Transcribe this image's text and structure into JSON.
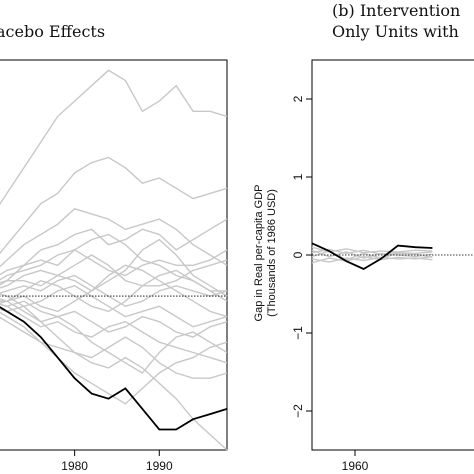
{
  "chart_data": [
    {
      "type": "line",
      "title": "acebo Effects",
      "xlabel": "",
      "ylabel": "",
      "xlim": [
        1970,
        1998
      ],
      "ylim": [
        -3,
        4.6
      ],
      "x_ticks": [
        1980,
        1990
      ],
      "y_ticks": [],
      "reference_line": 0,
      "grid": false,
      "treated_color": "#000000",
      "placebo_color": "#c8c8c8",
      "x": [
        1970,
        1972,
        1974,
        1976,
        1978,
        1980,
        1982,
        1984,
        1986,
        1988,
        1990,
        1992,
        1994,
        1996,
        1998
      ],
      "treated": [
        -0.1,
        -0.3,
        -0.5,
        -0.8,
        -1.2,
        -1.6,
        -1.9,
        -2.0,
        -1.8,
        -2.2,
        -2.6,
        -2.6,
        -2.4,
        -2.3,
        -2.2
      ],
      "placebos": [
        [
          1.5,
          2.0,
          2.5,
          3.0,
          3.5,
          3.8,
          4.1,
          4.4,
          4.2,
          3.6,
          3.8,
          4.1,
          3.6,
          3.6,
          3.5
        ],
        [
          0.6,
          1.0,
          1.4,
          1.8,
          2.0,
          2.4,
          2.6,
          2.7,
          2.5,
          2.2,
          2.3,
          2.1,
          1.9,
          2.0,
          2.1
        ],
        [
          0.4,
          0.7,
          1.0,
          1.2,
          1.4,
          1.7,
          1.6,
          1.5,
          1.3,
          1.4,
          1.5,
          1.3,
          1.0,
          0.8,
          0.6
        ],
        [
          0.3,
          0.5,
          0.6,
          0.9,
          1.0,
          1.2,
          1.3,
          1.0,
          1.1,
          1.3,
          1.2,
          0.9,
          1.1,
          1.3,
          1.5
        ],
        [
          0.2,
          0.4,
          0.5,
          0.6,
          0.8,
          0.9,
          1.1,
          1.2,
          1.0,
          0.7,
          0.6,
          0.4,
          0.3,
          0.1,
          0.1
        ],
        [
          0.1,
          0.2,
          0.4,
          0.5,
          0.4,
          0.6,
          0.8,
          0.6,
          0.3,
          0.2,
          0.2,
          0.3,
          0.5,
          0.6,
          0.7
        ],
        [
          0.1,
          0.3,
          0.3,
          0.2,
          0.4,
          0.3,
          0.1,
          0.4,
          0.6,
          0.5,
          0.3,
          0.1,
          -0.1,
          -0.3,
          -0.4
        ],
        [
          0.0,
          0.1,
          0.2,
          0.1,
          0.3,
          0.4,
          0.2,
          0.0,
          -0.2,
          -0.1,
          0.1,
          0.2,
          0.1,
          0.0,
          0.1
        ],
        [
          -0.1,
          -0.1,
          0.0,
          -0.2,
          -0.3,
          -0.1,
          0.1,
          0.3,
          0.5,
          0.9,
          1.1,
          0.8,
          0.4,
          0.2,
          0.0
        ],
        [
          -0.1,
          -0.2,
          -0.4,
          -0.6,
          -0.5,
          -0.7,
          -0.8,
          -0.6,
          -0.5,
          -0.7,
          -0.9,
          -1.0,
          -1.1,
          -1.2,
          -1.3
        ],
        [
          -0.2,
          -0.4,
          -0.6,
          -0.9,
          -1.0,
          -1.1,
          -1.3,
          -1.4,
          -1.2,
          -1.4,
          -1.7,
          -2.0,
          -2.4,
          -2.7,
          -3.0
        ],
        [
          -0.2,
          -0.3,
          -0.2,
          -0.5,
          -0.8,
          -1.1,
          -1.2,
          -1.0,
          -0.8,
          -1.0,
          -1.3,
          -1.5,
          -1.6,
          -1.6,
          -1.5
        ],
        [
          -0.3,
          -0.5,
          -0.7,
          -0.9,
          -1.2,
          -1.5,
          -1.7,
          -1.9,
          -2.1,
          -1.8,
          -1.5,
          -1.3,
          -1.2,
          -1.0,
          -0.9
        ],
        [
          -0.1,
          -0.2,
          -0.1,
          -0.3,
          -0.4,
          -0.3,
          -0.5,
          -0.7,
          -0.6,
          -0.4,
          -0.5,
          -0.7,
          -0.8,
          -0.6,
          -0.5
        ],
        [
          0.2,
          0.3,
          0.6,
          0.7,
          0.6,
          0.9,
          0.7,
          0.5,
          0.4,
          0.6,
          0.7,
          0.6,
          0.6,
          0.7,
          0.9
        ],
        [
          0.0,
          -0.1,
          0.1,
          0.3,
          0.2,
          0.0,
          -0.2,
          -0.3,
          -0.1,
          0.2,
          0.4,
          0.5,
          0.3,
          0.1,
          -0.1
        ],
        [
          -0.2,
          -0.1,
          -0.3,
          -0.5,
          -0.4,
          -0.6,
          -0.9,
          -1.1,
          -1.3,
          -1.5,
          -1.1,
          -0.8,
          -0.7,
          -0.9,
          -1.1
        ],
        [
          0.1,
          0.0,
          -0.2,
          -0.1,
          0.1,
          0.2,
          0.0,
          -0.2,
          -0.4,
          -0.3,
          -0.2,
          -0.4,
          -0.6,
          -0.5,
          -0.4
        ]
      ]
    },
    {
      "type": "line",
      "title_line1": "(b)  Intervention",
      "title_line2": "Only Units with",
      "xlabel": "",
      "ylabel_line1": "Gap in Real per-capita GDP",
      "ylabel_line2": "(Thousands of 1986 USD)",
      "xlim": [
        1955,
        1975
      ],
      "ylim": [
        -2.5,
        2.5
      ],
      "x_ticks": [
        1960
      ],
      "y_ticks": [
        2,
        1,
        0,
        -1,
        -2
      ],
      "reference_line": 0,
      "grid": false,
      "treated_color": "#000000",
      "placebo_color": "#c8c8c8",
      "x": [
        1955,
        1957,
        1959,
        1961,
        1963,
        1965,
        1967,
        1969
      ],
      "treated": [
        0.15,
        0.05,
        -0.08,
        -0.18,
        -0.05,
        0.12,
        0.1,
        0.09
      ],
      "placebos": [
        [
          0.1,
          0.04,
          0.08,
          0.03,
          0.05,
          0.04,
          0.06,
          0.05
        ],
        [
          -0.05,
          -0.09,
          -0.04,
          -0.07,
          -0.03,
          -0.05,
          -0.04,
          -0.06
        ],
        [
          0.03,
          0.07,
          0.02,
          0.06,
          0.01,
          0.03,
          0.02,
          0.04
        ],
        [
          -0.1,
          -0.04,
          -0.08,
          -0.02,
          -0.06,
          -0.03,
          -0.05,
          -0.02
        ],
        [
          0.06,
          -0.02,
          0.04,
          -0.04,
          0.02,
          0.0,
          -0.02,
          0.01
        ],
        [
          -0.02,
          0.05,
          -0.06,
          0.02,
          -0.04,
          0.02,
          0.01,
          -0.03
        ]
      ]
    }
  ]
}
